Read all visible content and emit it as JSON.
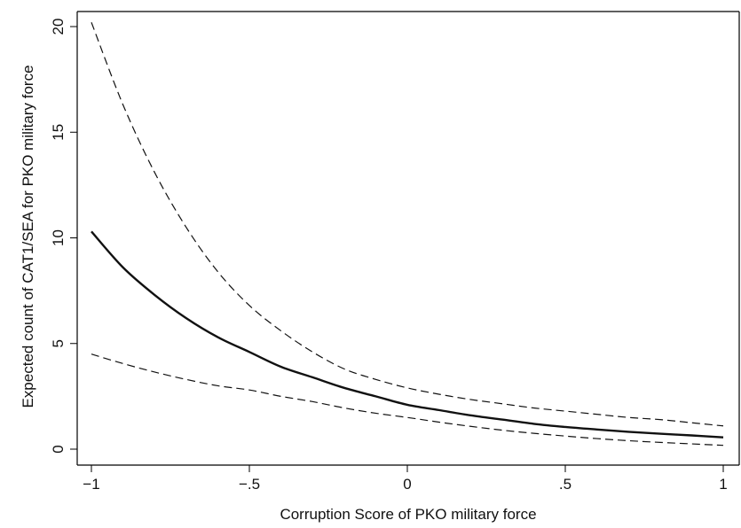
{
  "chart_data": {
    "type": "line",
    "title": "",
    "xlabel": "Corruption Score of PKO military force",
    "ylabel": "Expected count of CAT1/SEA for PKO military force",
    "xlim": [
      -1,
      1
    ],
    "ylim": [
      0,
      20.5
    ],
    "x_ticks": [
      -1,
      -0.5,
      0,
      0.5,
      1
    ],
    "x_tick_labels": [
      "−1",
      "−.5",
      "0",
      ".5",
      "1"
    ],
    "y_ticks": [
      0,
      5,
      10,
      15,
      20
    ],
    "y_tick_labels": [
      "0",
      "5",
      "10",
      "15",
      "20"
    ],
    "grid": false,
    "legend": "none",
    "x": [
      -1,
      -0.9,
      -0.8,
      -0.7,
      -0.6,
      -0.5,
      -0.4,
      -0.3,
      -0.2,
      -0.1,
      0,
      0.1,
      0.2,
      0.3,
      0.4,
      0.5,
      0.6,
      0.7,
      0.8,
      0.9,
      1
    ],
    "series": [
      {
        "style": "solid",
        "color": "#111111",
        "values": [
          10.3,
          8.6,
          7.3,
          6.2,
          5.3,
          4.6,
          3.9,
          3.4,
          2.9,
          2.5,
          2.1,
          1.85,
          1.6,
          1.4,
          1.2,
          1.05,
          0.93,
          0.82,
          0.73,
          0.65,
          0.56
        ]
      },
      {
        "style": "dashed",
        "color": "#111111",
        "values": [
          20.2,
          16.3,
          13.1,
          10.5,
          8.4,
          6.8,
          5.6,
          4.6,
          3.8,
          3.3,
          2.9,
          2.6,
          2.35,
          2.15,
          1.95,
          1.8,
          1.65,
          1.5,
          1.4,
          1.25,
          1.1
        ]
      },
      {
        "style": "dashed",
        "color": "#111111",
        "values": [
          4.5,
          4.05,
          3.65,
          3.3,
          3.0,
          2.8,
          2.5,
          2.25,
          1.95,
          1.7,
          1.5,
          1.28,
          1.08,
          0.9,
          0.75,
          0.62,
          0.5,
          0.4,
          0.32,
          0.25,
          0.18
        ]
      }
    ]
  }
}
